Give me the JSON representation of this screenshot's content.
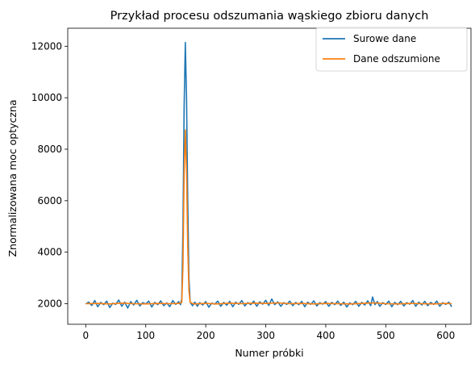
{
  "chart_data": {
    "type": "line",
    "title": "Przykład procesu odszumania wąskiego zbioru danych",
    "xlabel": "Numer próbki",
    "ylabel": "Znormalizowana moc optyczna",
    "xlim": [
      -30,
      642
    ],
    "ylim": [
      1200,
      12700
    ],
    "x_ticks": [
      0,
      100,
      200,
      300,
      400,
      500,
      600
    ],
    "y_ticks": [
      2000,
      4000,
      6000,
      8000,
      10000,
      12000
    ],
    "legend_position": "top-right",
    "grid": false,
    "series": [
      {
        "name": "Surowe dane",
        "color": "#1f77b4",
        "points": [
          [
            0,
            1990
          ],
          [
            5,
            2060
          ],
          [
            10,
            1930
          ],
          [
            15,
            2120
          ],
          [
            20,
            1880
          ],
          [
            25,
            2050
          ],
          [
            30,
            1960
          ],
          [
            35,
            2100
          ],
          [
            40,
            1850
          ],
          [
            45,
            2020
          ],
          [
            50,
            1970
          ],
          [
            55,
            2140
          ],
          [
            60,
            1900
          ],
          [
            65,
            2060
          ],
          [
            70,
            1830
          ],
          [
            75,
            2080
          ],
          [
            80,
            1950
          ],
          [
            85,
            2130
          ],
          [
            90,
            1910
          ],
          [
            95,
            2040
          ],
          [
            100,
            1990
          ],
          [
            105,
            2100
          ],
          [
            110,
            1870
          ],
          [
            115,
            2050
          ],
          [
            120,
            1960
          ],
          [
            125,
            2110
          ],
          [
            130,
            1920
          ],
          [
            135,
            2030
          ],
          [
            140,
            1880
          ],
          [
            145,
            2120
          ],
          [
            150,
            1970
          ],
          [
            155,
            2080
          ],
          [
            158,
            1960
          ],
          [
            160,
            2200
          ],
          [
            162,
            5000
          ],
          [
            164,
            9600
          ],
          [
            166,
            12150
          ],
          [
            168,
            10000
          ],
          [
            170,
            6000
          ],
          [
            172,
            3000
          ],
          [
            174,
            2050
          ],
          [
            178,
            1920
          ],
          [
            182,
            2060
          ],
          [
            186,
            1900
          ],
          [
            190,
            2040
          ],
          [
            195,
            1950
          ],
          [
            200,
            2080
          ],
          [
            205,
            1860
          ],
          [
            210,
            2020
          ],
          [
            215,
            1980
          ],
          [
            220,
            2100
          ],
          [
            225,
            1900
          ],
          [
            230,
            2050
          ],
          [
            235,
            1940
          ],
          [
            240,
            2090
          ],
          [
            245,
            1880
          ],
          [
            250,
            2060
          ],
          [
            255,
            1970
          ],
          [
            260,
            2120
          ],
          [
            265,
            1910
          ],
          [
            270,
            2040
          ],
          [
            275,
            1960
          ],
          [
            280,
            2100
          ],
          [
            285,
            1900
          ],
          [
            290,
            2070
          ],
          [
            295,
            1980
          ],
          [
            300,
            2130
          ],
          [
            305,
            1930
          ],
          [
            310,
            2180
          ],
          [
            315,
            1960
          ],
          [
            320,
            2070
          ],
          [
            325,
            1900
          ],
          [
            330,
            2040
          ],
          [
            335,
            1970
          ],
          [
            340,
            2100
          ],
          [
            345,
            1920
          ],
          [
            350,
            2050
          ],
          [
            355,
            1960
          ],
          [
            360,
            2090
          ],
          [
            365,
            1880
          ],
          [
            370,
            2060
          ],
          [
            375,
            1970
          ],
          [
            380,
            2110
          ],
          [
            385,
            1910
          ],
          [
            390,
            2040
          ],
          [
            395,
            1980
          ],
          [
            400,
            2080
          ],
          [
            405,
            1900
          ],
          [
            410,
            2050
          ],
          [
            415,
            1960
          ],
          [
            420,
            2100
          ],
          [
            425,
            1930
          ],
          [
            430,
            2060
          ],
          [
            435,
            1870
          ],
          [
            440,
            2030
          ],
          [
            445,
            1960
          ],
          [
            450,
            2090
          ],
          [
            455,
            1900
          ],
          [
            460,
            2050
          ],
          [
            465,
            1950
          ],
          [
            470,
            2110
          ],
          [
            475,
            1920
          ],
          [
            478,
            2260
          ],
          [
            482,
            1960
          ],
          [
            486,
            2080
          ],
          [
            490,
            1900
          ],
          [
            495,
            2040
          ],
          [
            500,
            1970
          ],
          [
            505,
            2100
          ],
          [
            510,
            1880
          ],
          [
            515,
            2050
          ],
          [
            520,
            1960
          ],
          [
            525,
            2090
          ],
          [
            530,
            1910
          ],
          [
            535,
            2040
          ],
          [
            540,
            1980
          ],
          [
            545,
            2120
          ],
          [
            550,
            1900
          ],
          [
            555,
            2060
          ],
          [
            560,
            1950
          ],
          [
            565,
            2090
          ],
          [
            570,
            1920
          ],
          [
            575,
            2050
          ],
          [
            580,
            1970
          ],
          [
            585,
            2100
          ],
          [
            590,
            1900
          ],
          [
            595,
            2040
          ],
          [
            600,
            1970
          ],
          [
            605,
            2060
          ],
          [
            610,
            1880
          ]
        ]
      },
      {
        "name": "Dane odszumione",
        "color": "#ff7f0e",
        "points": [
          [
            0,
            2000
          ],
          [
            20,
            2010
          ],
          [
            40,
            1990
          ],
          [
            60,
            2020
          ],
          [
            80,
            2000
          ],
          [
            100,
            1990
          ],
          [
            120,
            2010
          ],
          [
            140,
            2000
          ],
          [
            155,
            2010
          ],
          [
            160,
            2050
          ],
          [
            162,
            3500
          ],
          [
            164,
            7000
          ],
          [
            166,
            8750
          ],
          [
            168,
            7200
          ],
          [
            170,
            4200
          ],
          [
            172,
            2500
          ],
          [
            174,
            2050
          ],
          [
            180,
            1990
          ],
          [
            200,
            2010
          ],
          [
            220,
            1990
          ],
          [
            240,
            2020
          ],
          [
            260,
            2000
          ],
          [
            280,
            2020
          ],
          [
            300,
            2010
          ],
          [
            320,
            2030
          ],
          [
            340,
            2000
          ],
          [
            360,
            2010
          ],
          [
            380,
            1990
          ],
          [
            400,
            2010
          ],
          [
            420,
            2000
          ],
          [
            440,
            1990
          ],
          [
            460,
            2010
          ],
          [
            480,
            2030
          ],
          [
            500,
            2000
          ],
          [
            520,
            1990
          ],
          [
            540,
            2010
          ],
          [
            560,
            2000
          ],
          [
            580,
            1990
          ],
          [
            600,
            2010
          ],
          [
            610,
            2000
          ]
        ]
      }
    ]
  }
}
